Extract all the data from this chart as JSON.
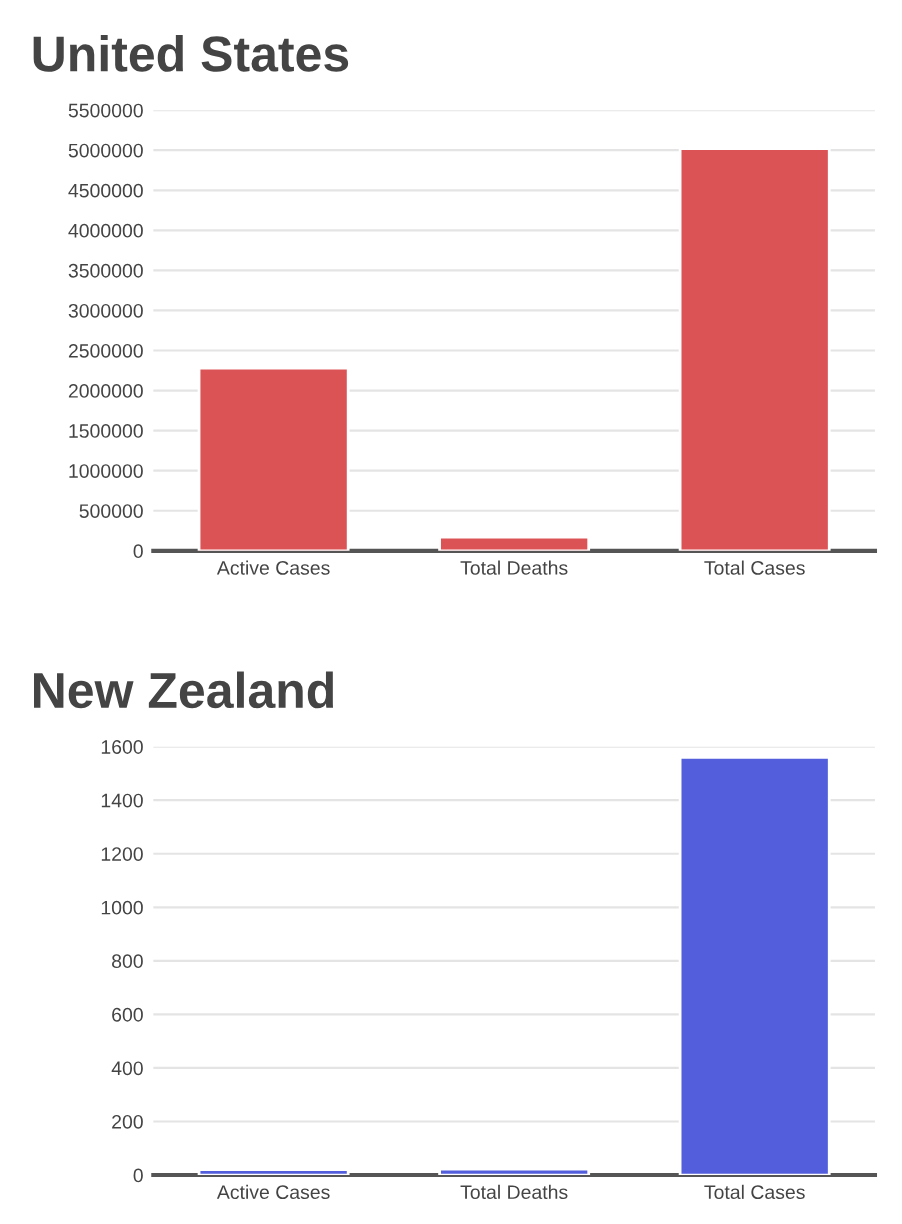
{
  "chart_data": [
    {
      "type": "bar",
      "title": "United States",
      "categories": [
        "Active Cases",
        "Total Deaths",
        "Total Cases"
      ],
      "values": [
        2280000,
        170000,
        5020000
      ],
      "color": "#dc5356",
      "ylim": [
        0,
        5500000
      ],
      "yticks": [
        0,
        500000,
        1000000,
        1500000,
        2000000,
        2500000,
        3000000,
        3500000,
        4000000,
        4500000,
        5000000,
        5500000
      ],
      "grid": "y"
    },
    {
      "type": "bar",
      "title": "New Zealand",
      "categories": [
        "Active Cases",
        "Total Deaths",
        "Total Cases"
      ],
      "values": [
        20,
        22,
        1560
      ],
      "color": "#525edb",
      "ylim": [
        0,
        1600
      ],
      "yticks": [
        0,
        200,
        400,
        600,
        800,
        1000,
        1200,
        1400,
        1600
      ],
      "grid": "y"
    }
  ]
}
